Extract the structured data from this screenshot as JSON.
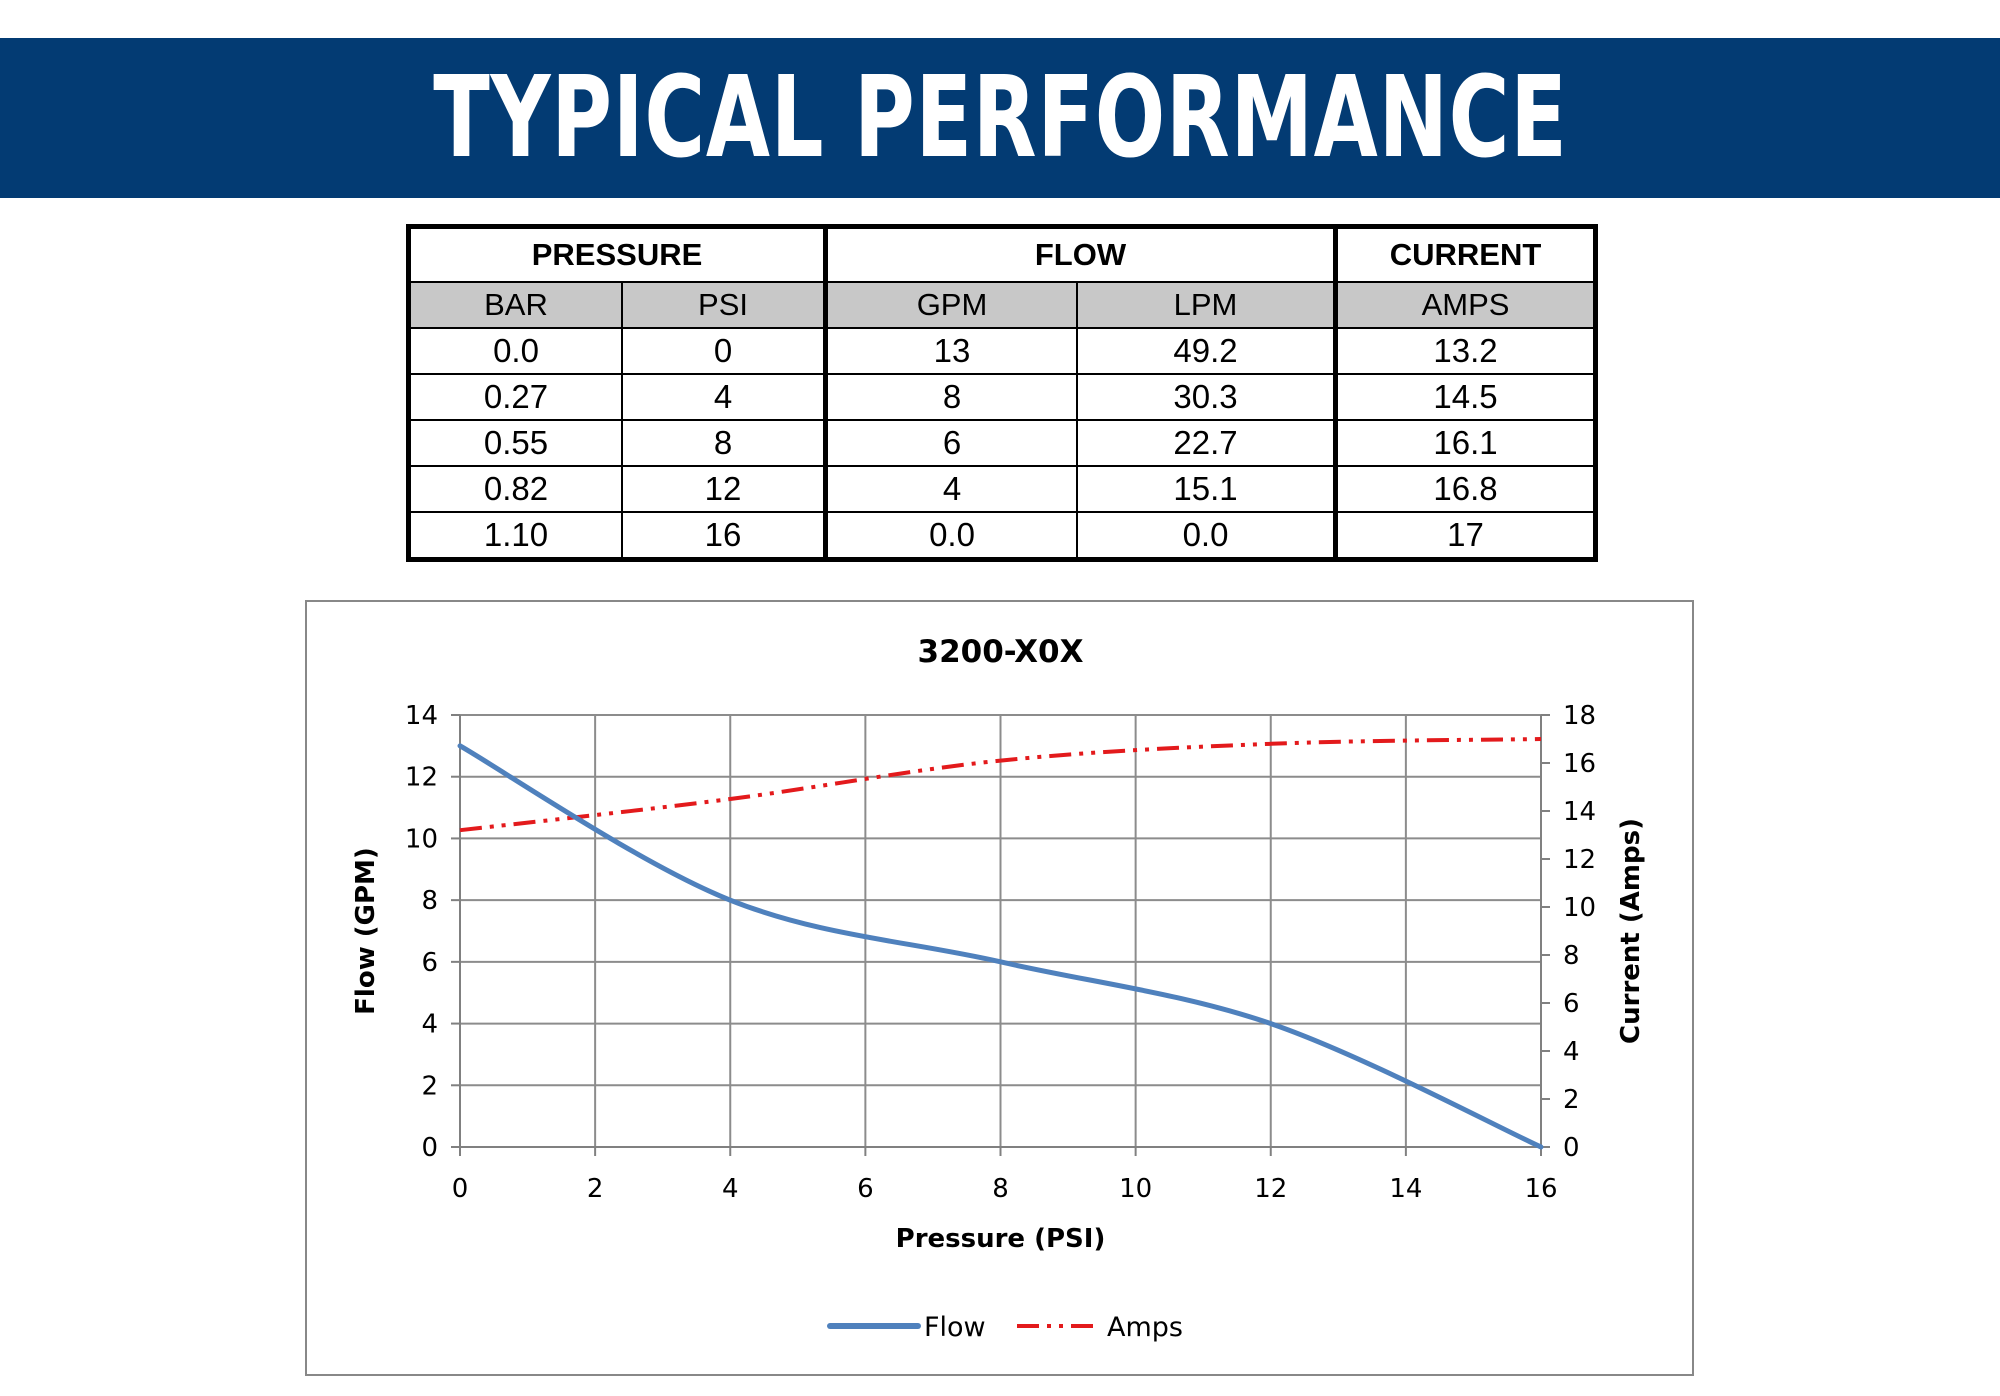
{
  "header": {
    "title": "TYPICAL PERFORMANCE"
  },
  "table": {
    "groups": [
      "PRESSURE",
      "FLOW",
      "CURRENT"
    ],
    "columns": [
      "BAR",
      "PSI",
      "GPM",
      "LPM",
      "AMPS"
    ],
    "rows": [
      [
        "0.0",
        "0",
        "13",
        "49.2",
        "13.2"
      ],
      [
        "0.27",
        "4",
        "8",
        "30.3",
        "14.5"
      ],
      [
        "0.55",
        "8",
        "6",
        "22.7",
        "16.1"
      ],
      [
        "0.82",
        "12",
        "4",
        "15.1",
        "16.8"
      ],
      [
        "1.10",
        "16",
        "0.0",
        "0.0",
        "17"
      ]
    ]
  },
  "chart_data": {
    "type": "line",
    "title": "3200-X0X",
    "xlabel": "Pressure (PSI)",
    "ylabel": "Flow (GPM)",
    "y2label": "Current (Amps)",
    "xlim": [
      0,
      16
    ],
    "ylim": [
      0,
      14
    ],
    "y2lim": [
      0,
      18
    ],
    "xticks": [
      0,
      2,
      4,
      6,
      8,
      10,
      12,
      14,
      16
    ],
    "yticks": [
      0,
      2,
      4,
      6,
      8,
      10,
      12,
      14
    ],
    "y2ticks": [
      0,
      2,
      4,
      6,
      8,
      10,
      12,
      14,
      16,
      18
    ],
    "grid": true,
    "legend": "bottom",
    "series": [
      {
        "name": "Flow",
        "axis": "left",
        "color": "#4f81bd",
        "style": "solid",
        "x": [
          0,
          4,
          8,
          12,
          16
        ],
        "values": [
          13,
          8,
          6,
          4,
          0
        ]
      },
      {
        "name": "Amps",
        "axis": "right",
        "color": "#e31a1c",
        "style": "dash-dot-dot",
        "x": [
          0,
          4,
          8,
          12,
          16
        ],
        "values": [
          13.2,
          14.5,
          16.1,
          16.8,
          17
        ]
      }
    ]
  }
}
